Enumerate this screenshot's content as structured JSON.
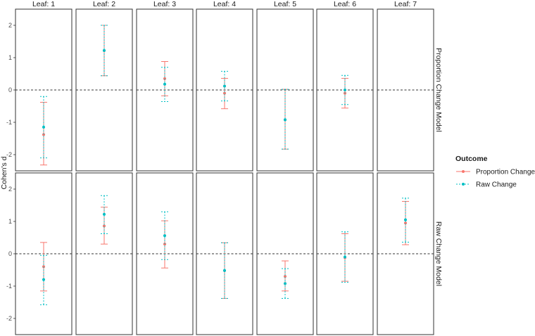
{
  "chart_data": {
    "type": "scatter",
    "ylabel": "Cohen's d",
    "ylim": [
      -2.5,
      2.5
    ],
    "yticks": [
      -2,
      -1,
      0,
      1,
      2
    ],
    "reference_line_y": 0,
    "columns": [
      "Leaf: 1",
      "Leaf: 2",
      "Leaf: 3",
      "Leaf: 4",
      "Leaf: 5",
      "Leaf: 6",
      "Leaf: 7"
    ],
    "rows": [
      "Proportion Change Model",
      "Raw Change Model"
    ],
    "legend": {
      "title": "Outcome",
      "position": "right",
      "entries": [
        "Proportion Change",
        "Raw Change"
      ]
    },
    "series": [
      {
        "name": "Proportion Change",
        "color": "#F8766D",
        "linetype": "solid",
        "points": [
          {
            "row": 0,
            "col": 0,
            "y": -1.38,
            "lo": -2.32,
            "hi": -0.38
          },
          {
            "row": 0,
            "col": 1,
            "y": 1.22,
            "lo": 0.44,
            "hi": 2.0
          },
          {
            "row": 0,
            "col": 2,
            "y": 0.35,
            "lo": -0.18,
            "hi": 0.88
          },
          {
            "row": 0,
            "col": 3,
            "y": -0.1,
            "lo": -0.58,
            "hi": 0.36
          },
          {
            "row": 0,
            "col": 4,
            "y": -0.92,
            "lo": -1.83,
            "hi": 0.02
          },
          {
            "row": 0,
            "col": 5,
            "y": -0.1,
            "lo": -0.56,
            "hi": 0.36
          },
          {
            "row": 1,
            "col": 0,
            "y": -0.4,
            "lo": -1.15,
            "hi": 0.35
          },
          {
            "row": 1,
            "col": 1,
            "y": 0.86,
            "lo": 0.3,
            "hi": 1.44
          },
          {
            "row": 1,
            "col": 2,
            "y": 0.3,
            "lo": -0.44,
            "hi": 1.02
          },
          {
            "row": 1,
            "col": 3,
            "y": -0.52,
            "lo": -1.38,
            "hi": 0.34
          },
          {
            "row": 1,
            "col": 4,
            "y": -0.7,
            "lo": -1.15,
            "hi": -0.22
          },
          {
            "row": 1,
            "col": 5,
            "y": -0.12,
            "lo": -0.85,
            "hi": 0.62
          },
          {
            "row": 1,
            "col": 6,
            "y": 0.95,
            "lo": 0.28,
            "hi": 1.62
          }
        ]
      },
      {
        "name": "Raw Change",
        "color": "#00BFC4",
        "linetype": "dotted",
        "points": [
          {
            "row": 0,
            "col": 0,
            "y": -1.15,
            "lo": -2.1,
            "hi": -0.2
          },
          {
            "row": 0,
            "col": 1,
            "y": 1.22,
            "lo": 0.44,
            "hi": 2.0
          },
          {
            "row": 0,
            "col": 2,
            "y": 0.18,
            "lo": -0.36,
            "hi": 0.7
          },
          {
            "row": 0,
            "col": 3,
            "y": 0.12,
            "lo": -0.34,
            "hi": 0.58
          },
          {
            "row": 0,
            "col": 4,
            "y": -0.92,
            "lo": -1.83,
            "hi": 0.02
          },
          {
            "row": 0,
            "col": 5,
            "y": 0.0,
            "lo": -0.45,
            "hi": 0.45
          },
          {
            "row": 1,
            "col": 0,
            "y": -0.8,
            "lo": -1.58,
            "hi": -0.05
          },
          {
            "row": 1,
            "col": 1,
            "y": 1.22,
            "lo": 0.62,
            "hi": 1.8
          },
          {
            "row": 1,
            "col": 2,
            "y": 0.56,
            "lo": -0.18,
            "hi": 1.3
          },
          {
            "row": 1,
            "col": 3,
            "y": -0.52,
            "lo": -1.38,
            "hi": 0.34
          },
          {
            "row": 1,
            "col": 4,
            "y": -0.92,
            "lo": -1.38,
            "hi": -0.46
          },
          {
            "row": 1,
            "col": 5,
            "y": -0.1,
            "lo": -0.88,
            "hi": 0.68
          },
          {
            "row": 1,
            "col": 6,
            "y": 1.05,
            "lo": 0.36,
            "hi": 1.72
          }
        ]
      }
    ]
  }
}
